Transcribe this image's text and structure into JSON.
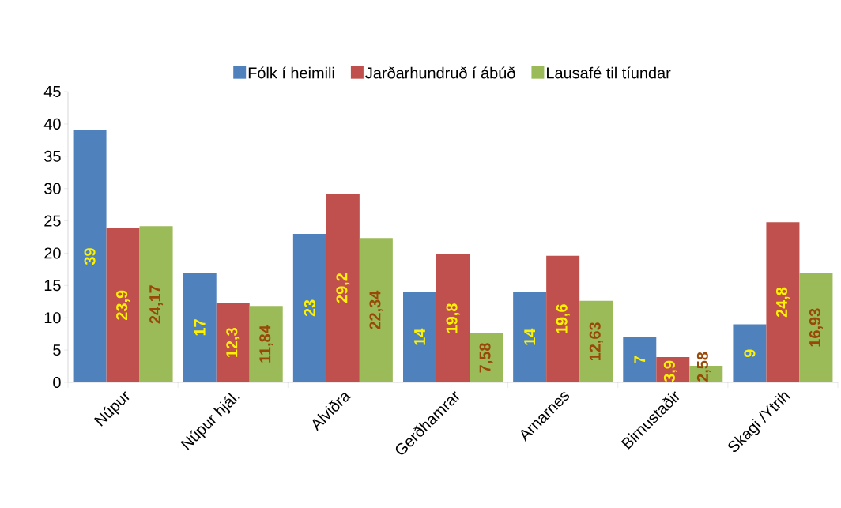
{
  "chart_data": {
    "type": "bar",
    "categories": [
      "Núpur",
      "Núpur hjál.",
      "Alviðra",
      "Gerðhamrar",
      "Arnarnes",
      "Birnustaðir",
      "Skagi /Ytrih"
    ],
    "series": [
      {
        "name": "Fólk í heimili",
        "color": "#4f81bd",
        "values": [
          39,
          17,
          23,
          14,
          14,
          7,
          9
        ],
        "value_labels": [
          "39",
          "17",
          "23",
          "14",
          "14",
          "7",
          "9"
        ]
      },
      {
        "name": "Jarðarhundruð í ábúð",
        "color": "#c0504d",
        "values": [
          23.9,
          12.3,
          29.2,
          19.8,
          19.6,
          3.9,
          24.8
        ],
        "value_labels": [
          "23,9",
          "12,3",
          "29,2",
          "19,8",
          "19,6",
          "3,9",
          "24,8"
        ]
      },
      {
        "name": "Lausafé til tíundar",
        "color": "#9bbb59",
        "values": [
          24.17,
          11.84,
          22.34,
          7.58,
          12.63,
          2.58,
          16.93
        ],
        "value_labels": [
          "24,17",
          "11,84",
          "22,34",
          "7,58",
          "12,63",
          "2,58",
          "16,93"
        ]
      }
    ],
    "ylim": [
      0,
      45
    ],
    "yticks": [
      0,
      5,
      10,
      15,
      20,
      25,
      30,
      35,
      40,
      45
    ],
    "grid": false,
    "legend": "top"
  }
}
